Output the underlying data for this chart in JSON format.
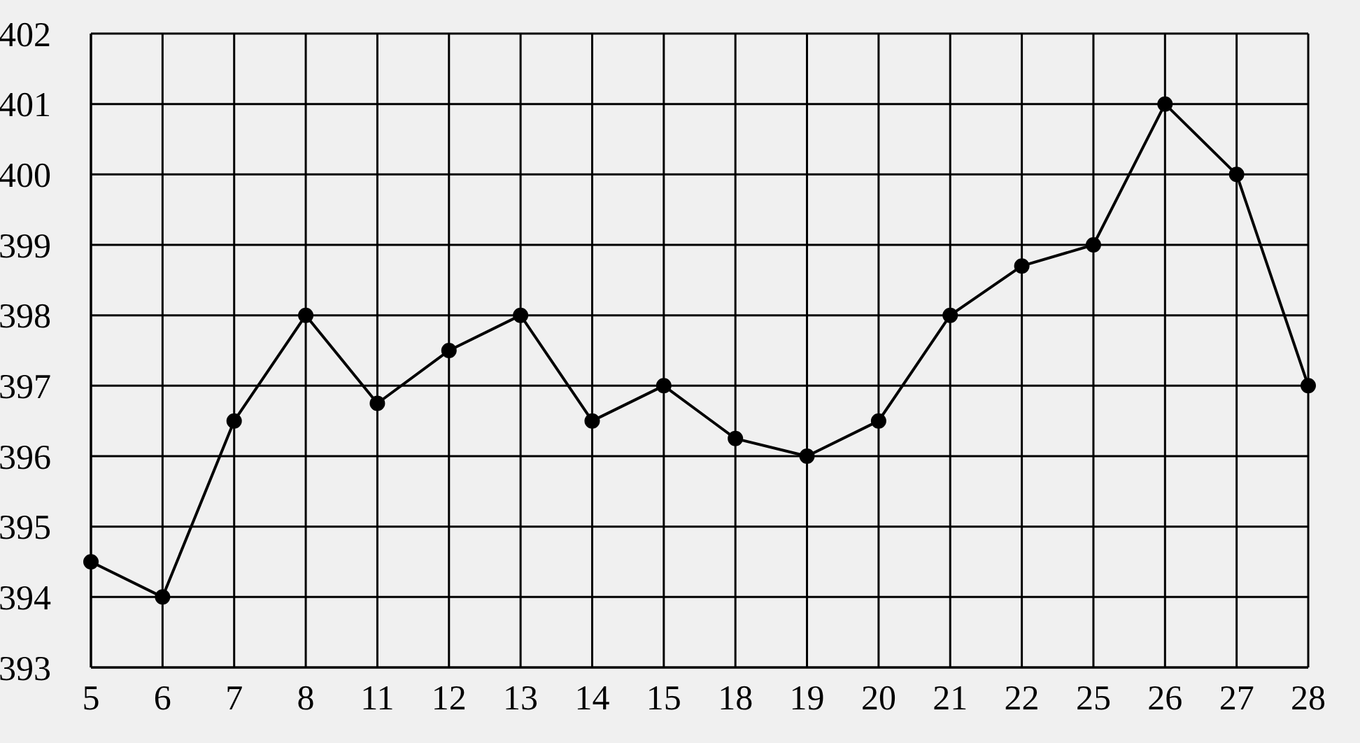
{
  "chart_data": {
    "type": "line",
    "categories": [
      "5",
      "6",
      "7",
      "8",
      "11",
      "12",
      "13",
      "14",
      "15",
      "18",
      "19",
      "20",
      "21",
      "22",
      "25",
      "26",
      "27",
      "28"
    ],
    "values": [
      394.5,
      394,
      396.5,
      398,
      396.75,
      397.5,
      398,
      396.5,
      397,
      396.25,
      396,
      396.5,
      398,
      398.7,
      399,
      401,
      400,
      397
    ],
    "color": "#000000",
    "ylim": [
      393,
      402
    ],
    "yticks": [
      393,
      394,
      395,
      396,
      397,
      398,
      399,
      400,
      401,
      402
    ],
    "grid": true,
    "marker": "circle",
    "line_style": "solid"
  }
}
